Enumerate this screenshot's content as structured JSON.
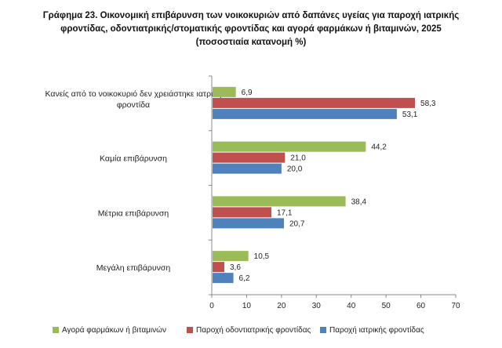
{
  "chart_data": {
    "type": "bar",
    "orientation": "horizontal",
    "title_lines": [
      "Γράφημα 23. Οικονομική επιβάρυνση των νοικοκυριών από δαπάνες υγείας για παροχή ιατρικής",
      "φροντίδας, οδοντιατρικής/στοματικής φροντίδας και αγορά φαρμάκων ή βιταμινών, 2025",
      "(ποσοστιαία κατανομή %)"
    ],
    "categories": [
      [
        "Κανείς από το νοικοκυριό δεν χρειάστηκε ιατρική",
        "φροντίδα"
      ],
      [
        "Καμία επιβάρυνση"
      ],
      [
        "Μέτρια επιβάρυνση"
      ],
      [
        "Μεγάλη επιβάρυνση"
      ]
    ],
    "series": [
      {
        "name": "Αγορά φαρμάκων ή βιταμινών",
        "color": "#9BBB59",
        "values": [
          6.9,
          44.2,
          38.4,
          10.5
        ],
        "labels": [
          "6,9",
          "44,2",
          "38,4",
          "10,5"
        ]
      },
      {
        "name": "Παροχή οδοντιατρικής φροντίδας",
        "color": "#C0504D",
        "values": [
          58.3,
          21.0,
          17.1,
          3.6
        ],
        "labels": [
          "58,3",
          "21,0",
          "17,1",
          "3,6"
        ]
      },
      {
        "name": "Παροχή ιατρικής φροντίδας",
        "color": "#4F81BD",
        "values": [
          53.1,
          20.0,
          20.7,
          6.2
        ],
        "labels": [
          "53,1",
          "20,0",
          "20,7",
          "6,2"
        ]
      }
    ],
    "xlim": [
      0,
      70
    ],
    "xticks": [
      0,
      10,
      20,
      30,
      40,
      50,
      60,
      70
    ],
    "grid": false,
    "legend_position": "bottom"
  }
}
